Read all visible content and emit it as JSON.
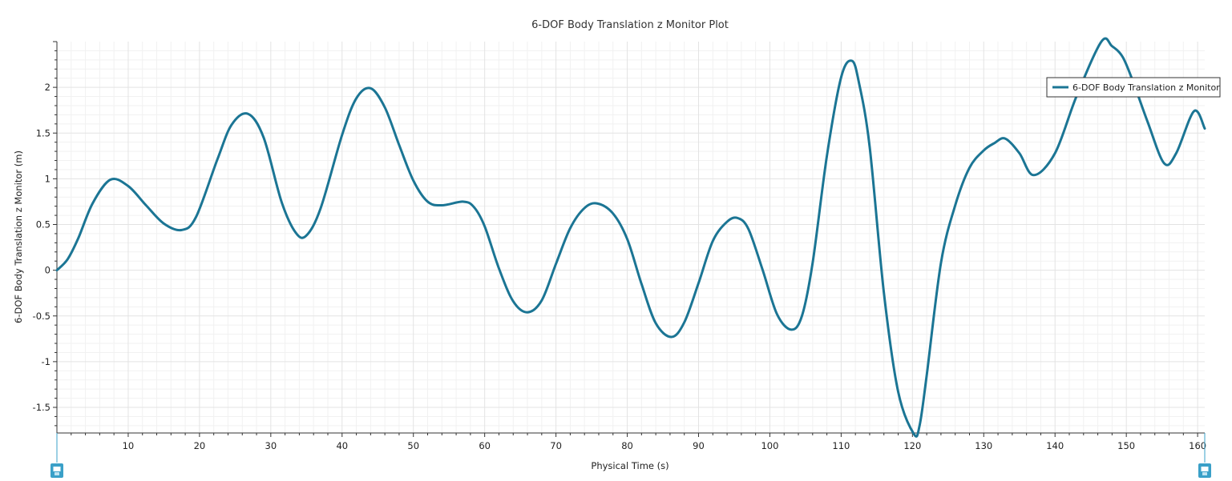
{
  "chart_data": {
    "type": "line",
    "title": "6-DOF Body Translation z Monitor Plot",
    "xlabel": "Physical Time (s)",
    "ylabel": "6-DOF Body Translation z Monitor (m)",
    "xlim": [
      0,
      161
    ],
    "ylim": [
      -1.78,
      2.5
    ],
    "xticks": [
      10,
      20,
      30,
      40,
      50,
      60,
      70,
      80,
      90,
      100,
      110,
      120,
      130,
      140,
      150,
      160
    ],
    "yticks": [
      -1.5,
      -1,
      -0.5,
      0,
      0.5,
      1,
      1.5,
      2
    ],
    "xtick_labels": [
      "10",
      "20",
      "30",
      "40",
      "50",
      "60",
      "70",
      "80",
      "90",
      "100",
      "110",
      "120",
      "130",
      "140",
      "150",
      "160"
    ],
    "ytick_labels": [
      "-1.5",
      "-1",
      "-0.5",
      "0",
      "0.5",
      "1",
      "1.5",
      "2"
    ],
    "grid": true,
    "legend_position": "top-right",
    "series": [
      {
        "name": "6-DOF Body Translation z Monitor",
        "color": "#1b7594",
        "x": [
          0,
          1.5,
          3,
          5,
          7.5,
          10,
          12.5,
          15,
          17.5,
          19.5,
          22.5,
          24.5,
          26.8,
          29,
          31.5,
          33.5,
          35,
          37,
          40,
          42,
          44,
          46,
          48,
          50,
          52,
          54,
          57,
          58.5,
          60,
          62,
          64,
          66,
          68,
          70,
          72,
          74,
          75.8,
          78,
          80,
          82,
          84,
          86.2,
          88,
          90,
          92,
          94,
          95.5,
          97,
          99,
          101,
          103,
          104.5,
          106,
          108,
          110,
          111.5,
          112.5,
          114,
          116,
          118,
          120.2,
          121,
          122,
          124,
          126,
          128,
          130,
          131.5,
          133,
          135,
          137,
          140,
          143,
          146.5,
          148,
          149.5,
          151,
          153,
          155.3,
          157,
          159.5,
          161
        ],
        "y": [
          0,
          0.12,
          0.35,
          0.73,
          0.99,
          0.92,
          0.71,
          0.51,
          0.44,
          0.58,
          1.21,
          1.59,
          1.71,
          1.45,
          0.75,
          0.41,
          0.38,
          0.68,
          1.48,
          1.88,
          1.99,
          1.78,
          1.37,
          0.98,
          0.75,
          0.71,
          0.75,
          0.69,
          0.48,
          0.02,
          -0.34,
          -0.46,
          -0.33,
          0.07,
          0.46,
          0.68,
          0.73,
          0.62,
          0.34,
          -0.15,
          -0.58,
          -0.73,
          -0.57,
          -0.14,
          0.32,
          0.53,
          0.57,
          0.45,
          0.0,
          -0.48,
          -0.65,
          -0.5,
          0.08,
          1.25,
          2.11,
          2.29,
          2.05,
          1.35,
          -0.25,
          -1.33,
          -1.79,
          -1.7,
          -1.15,
          0.08,
          0.71,
          1.12,
          1.31,
          1.39,
          1.44,
          1.28,
          1.04,
          1.28,
          1.9,
          2.5,
          2.45,
          2.33,
          2.05,
          1.62,
          1.17,
          1.28,
          1.74,
          1.55
        ]
      }
    ]
  }
}
